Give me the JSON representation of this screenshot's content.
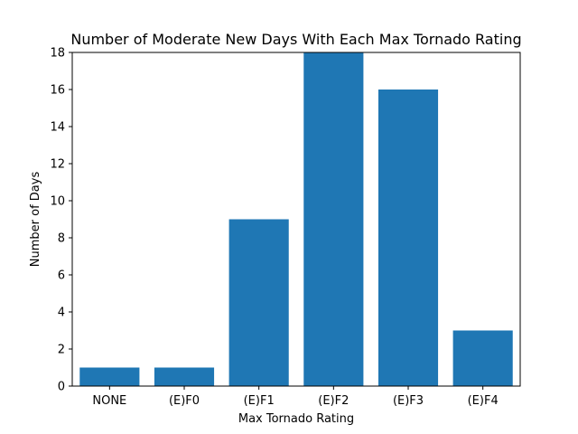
{
  "chart_data": {
    "type": "bar",
    "title": "Number of Moderate New Days With Each Max Tornado Rating",
    "xlabel": "Max Tornado Rating",
    "ylabel": "Number of Days",
    "categories": [
      "NONE",
      "(E)F0",
      "(E)F1",
      "(E)F2",
      "(E)F3",
      "(E)F4"
    ],
    "values": [
      1,
      1,
      9,
      18,
      16,
      3
    ],
    "ylim": [
      0,
      18
    ],
    "yticks": [
      0,
      2,
      4,
      6,
      8,
      10,
      12,
      14,
      16,
      18
    ],
    "bar_color": "#1f77b4",
    "grid": false,
    "legend": false
  }
}
